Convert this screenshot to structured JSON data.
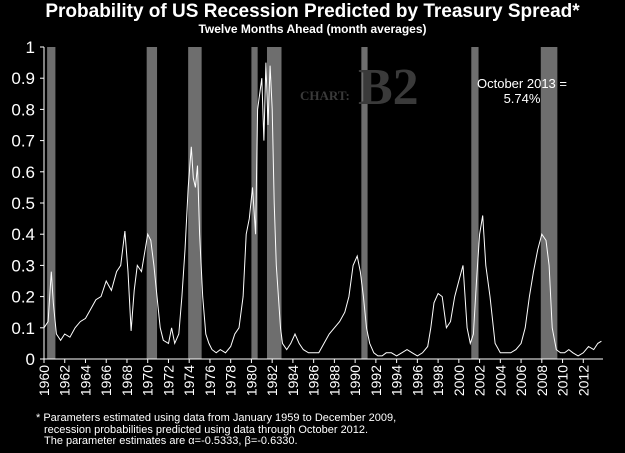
{
  "chart_data": {
    "type": "line",
    "title": "Probability of US Recession Predicted by Treasury Spread*",
    "subtitle": "Twelve Months Ahead (month averages)",
    "xlim": [
      1960,
      2013.9
    ],
    "ylim": [
      0,
      1
    ],
    "yticks": [
      "0",
      "0.1",
      "0.2",
      "0.3",
      "0.4",
      "0.5",
      "0.6",
      "0.7",
      "0.8",
      "0.9",
      "1"
    ],
    "xticks": [
      "1960",
      "1962",
      "1964",
      "1966",
      "1968",
      "1970",
      "1972",
      "1974",
      "1976",
      "1978",
      "1980",
      "1982",
      "1984",
      "1986",
      "1988",
      "1990",
      "1992",
      "1994",
      "1996",
      "1998",
      "2000",
      "2002",
      "2004",
      "2006",
      "2008",
      "2010",
      "2012"
    ],
    "recessions": [
      [
        1960.3,
        1961.1
      ],
      [
        1969.9,
        1970.9
      ],
      [
        1973.9,
        1975.2
      ],
      [
        1980.0,
        1980.6
      ],
      [
        1981.5,
        1982.9
      ],
      [
        1990.6,
        1991.2
      ],
      [
        2001.2,
        2001.9
      ],
      [
        2007.9,
        2009.5
      ]
    ],
    "series": [
      {
        "x": [
          1960.0,
          1960.4,
          1960.7,
          1960.9,
          1961.2,
          1961.6,
          1962.0,
          1962.5,
          1963.0,
          1963.5,
          1964.0,
          1964.5,
          1965.0,
          1965.5,
          1966.0,
          1966.5,
          1967.0,
          1967.4,
          1967.8,
          1968.1,
          1968.4,
          1968.7,
          1969.0,
          1969.4,
          1969.7,
          1970.0,
          1970.3,
          1970.6,
          1970.9,
          1971.2,
          1971.5,
          1972.0,
          1972.3,
          1972.6,
          1973.0,
          1973.3,
          1973.6,
          1973.9,
          1974.2,
          1974.4,
          1974.6,
          1974.8,
          1975.0,
          1975.3,
          1975.6,
          1975.9,
          1976.2,
          1976.6,
          1977.0,
          1977.5,
          1978.0,
          1978.4,
          1978.8,
          1979.2,
          1979.5,
          1979.8,
          1980.1,
          1980.4,
          1980.6,
          1980.8,
          1981.0,
          1981.2,
          1981.4,
          1981.6,
          1981.8,
          1982.0,
          1982.2,
          1982.4,
          1982.6,
          1982.8,
          1983.0,
          1983.4,
          1983.8,
          1984.2,
          1984.6,
          1985.0,
          1985.5,
          1986.0,
          1986.5,
          1987.0,
          1987.5,
          1988.0,
          1988.5,
          1989.0,
          1989.4,
          1989.8,
          1990.2,
          1990.5,
          1990.8,
          1991.1,
          1991.4,
          1991.8,
          1992.2,
          1992.6,
          1993.0,
          1993.5,
          1994.0,
          1994.5,
          1995.0,
          1995.5,
          1996.0,
          1996.5,
          1997.0,
          1997.3,
          1997.6,
          1998.0,
          1998.4,
          1998.8,
          1999.2,
          1999.6,
          2000.0,
          2000.4,
          2000.8,
          2001.1,
          2001.4,
          2001.7,
          2002.0,
          2002.3,
          2002.6,
          2003.0,
          2003.5,
          2004.0,
          2004.5,
          2005.0,
          2005.5,
          2006.0,
          2006.4,
          2006.8,
          2007.2,
          2007.6,
          2008.0,
          2008.4,
          2008.7,
          2009.0,
          2009.4,
          2009.8,
          2010.2,
          2010.6,
          2011.0,
          2011.5,
          2012.0,
          2012.5,
          2013.0,
          2013.4,
          2013.75
        ],
        "values": [
          0.1,
          0.12,
          0.28,
          0.18,
          0.08,
          0.06,
          0.08,
          0.07,
          0.1,
          0.12,
          0.13,
          0.16,
          0.19,
          0.2,
          0.25,
          0.22,
          0.28,
          0.3,
          0.41,
          0.28,
          0.09,
          0.22,
          0.3,
          0.28,
          0.34,
          0.4,
          0.38,
          0.3,
          0.2,
          0.1,
          0.06,
          0.05,
          0.1,
          0.05,
          0.08,
          0.2,
          0.35,
          0.55,
          0.68,
          0.58,
          0.55,
          0.62,
          0.4,
          0.2,
          0.08,
          0.05,
          0.03,
          0.02,
          0.03,
          0.02,
          0.04,
          0.08,
          0.1,
          0.2,
          0.4,
          0.45,
          0.55,
          0.4,
          0.8,
          0.85,
          0.9,
          0.7,
          0.95,
          0.75,
          0.94,
          0.8,
          0.5,
          0.3,
          0.2,
          0.1,
          0.05,
          0.03,
          0.05,
          0.08,
          0.05,
          0.03,
          0.02,
          0.02,
          0.02,
          0.05,
          0.08,
          0.1,
          0.12,
          0.15,
          0.2,
          0.3,
          0.33,
          0.28,
          0.2,
          0.1,
          0.05,
          0.02,
          0.01,
          0.01,
          0.02,
          0.02,
          0.01,
          0.02,
          0.03,
          0.02,
          0.01,
          0.02,
          0.04,
          0.1,
          0.18,
          0.21,
          0.2,
          0.1,
          0.12,
          0.2,
          0.25,
          0.3,
          0.1,
          0.05,
          0.08,
          0.25,
          0.4,
          0.46,
          0.3,
          0.2,
          0.05,
          0.02,
          0.02,
          0.02,
          0.03,
          0.05,
          0.1,
          0.2,
          0.28,
          0.35,
          0.4,
          0.38,
          0.3,
          0.1,
          0.03,
          0.02,
          0.02,
          0.03,
          0.02,
          0.01,
          0.02,
          0.04,
          0.03,
          0.05,
          0.057
        ]
      }
    ]
  },
  "annotation": {
    "line1": "October 2013 =",
    "line2": "5.74%"
  },
  "watermark": {
    "prefix": "CHART:",
    "id": "B2"
  },
  "footnote": {
    "line1": "* Parameters estimated using data from January 1959 to December 2009,",
    "line2": "recession probabilities predicted using data through October 2012.",
    "line3": "The parameter estimates are α=-0.5333, β=-0.6330."
  }
}
